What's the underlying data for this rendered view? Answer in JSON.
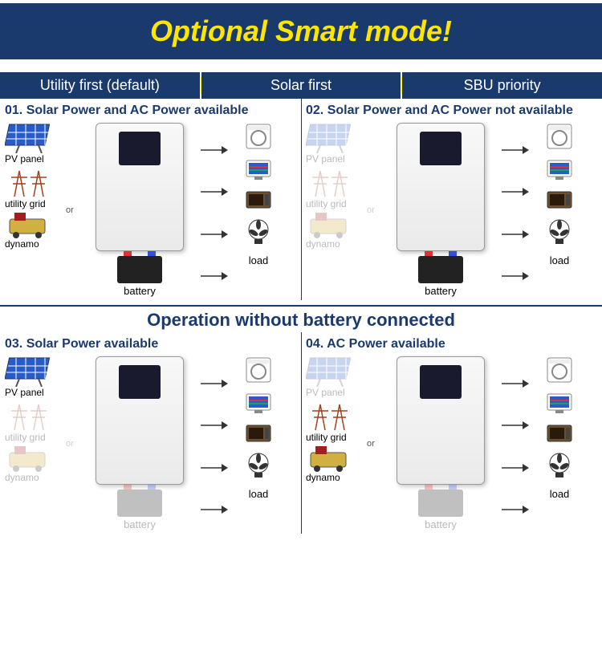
{
  "banner": {
    "text": "Optional Smart mode!",
    "color": "#ffe600",
    "bg": "#1a3a6e"
  },
  "modes": [
    {
      "label": "Utility first (default)"
    },
    {
      "label": "Solar first"
    },
    {
      "label": "SBU priority"
    }
  ],
  "midband": "Operation without battery connected",
  "labels": {
    "pv": "PV panel",
    "grid": "utility grid",
    "dyn": "dynamo",
    "or": "or",
    "load": "load",
    "battery": "battery"
  },
  "panels": [
    {
      "title": "01. Solar Power and AC Power available",
      "pv_on": true,
      "grid_on": true,
      "dyn_on": true,
      "battery_on": true
    },
    {
      "title": "02. Solar Power and AC Power not available",
      "pv_on": false,
      "grid_on": false,
      "dyn_on": false,
      "battery_on": true
    },
    {
      "title": "03. Solar Power available",
      "pv_on": true,
      "grid_on": false,
      "dyn_on": false,
      "battery_on": false
    },
    {
      "title": "04. AC Power available",
      "pv_on": false,
      "grid_on": true,
      "dyn_on": true,
      "battery_on": false
    }
  ],
  "colors": {
    "brand": "#1a3a6e",
    "accent": "#ffe600",
    "panel_blue": "#2a5cc7",
    "gray": "#888"
  }
}
